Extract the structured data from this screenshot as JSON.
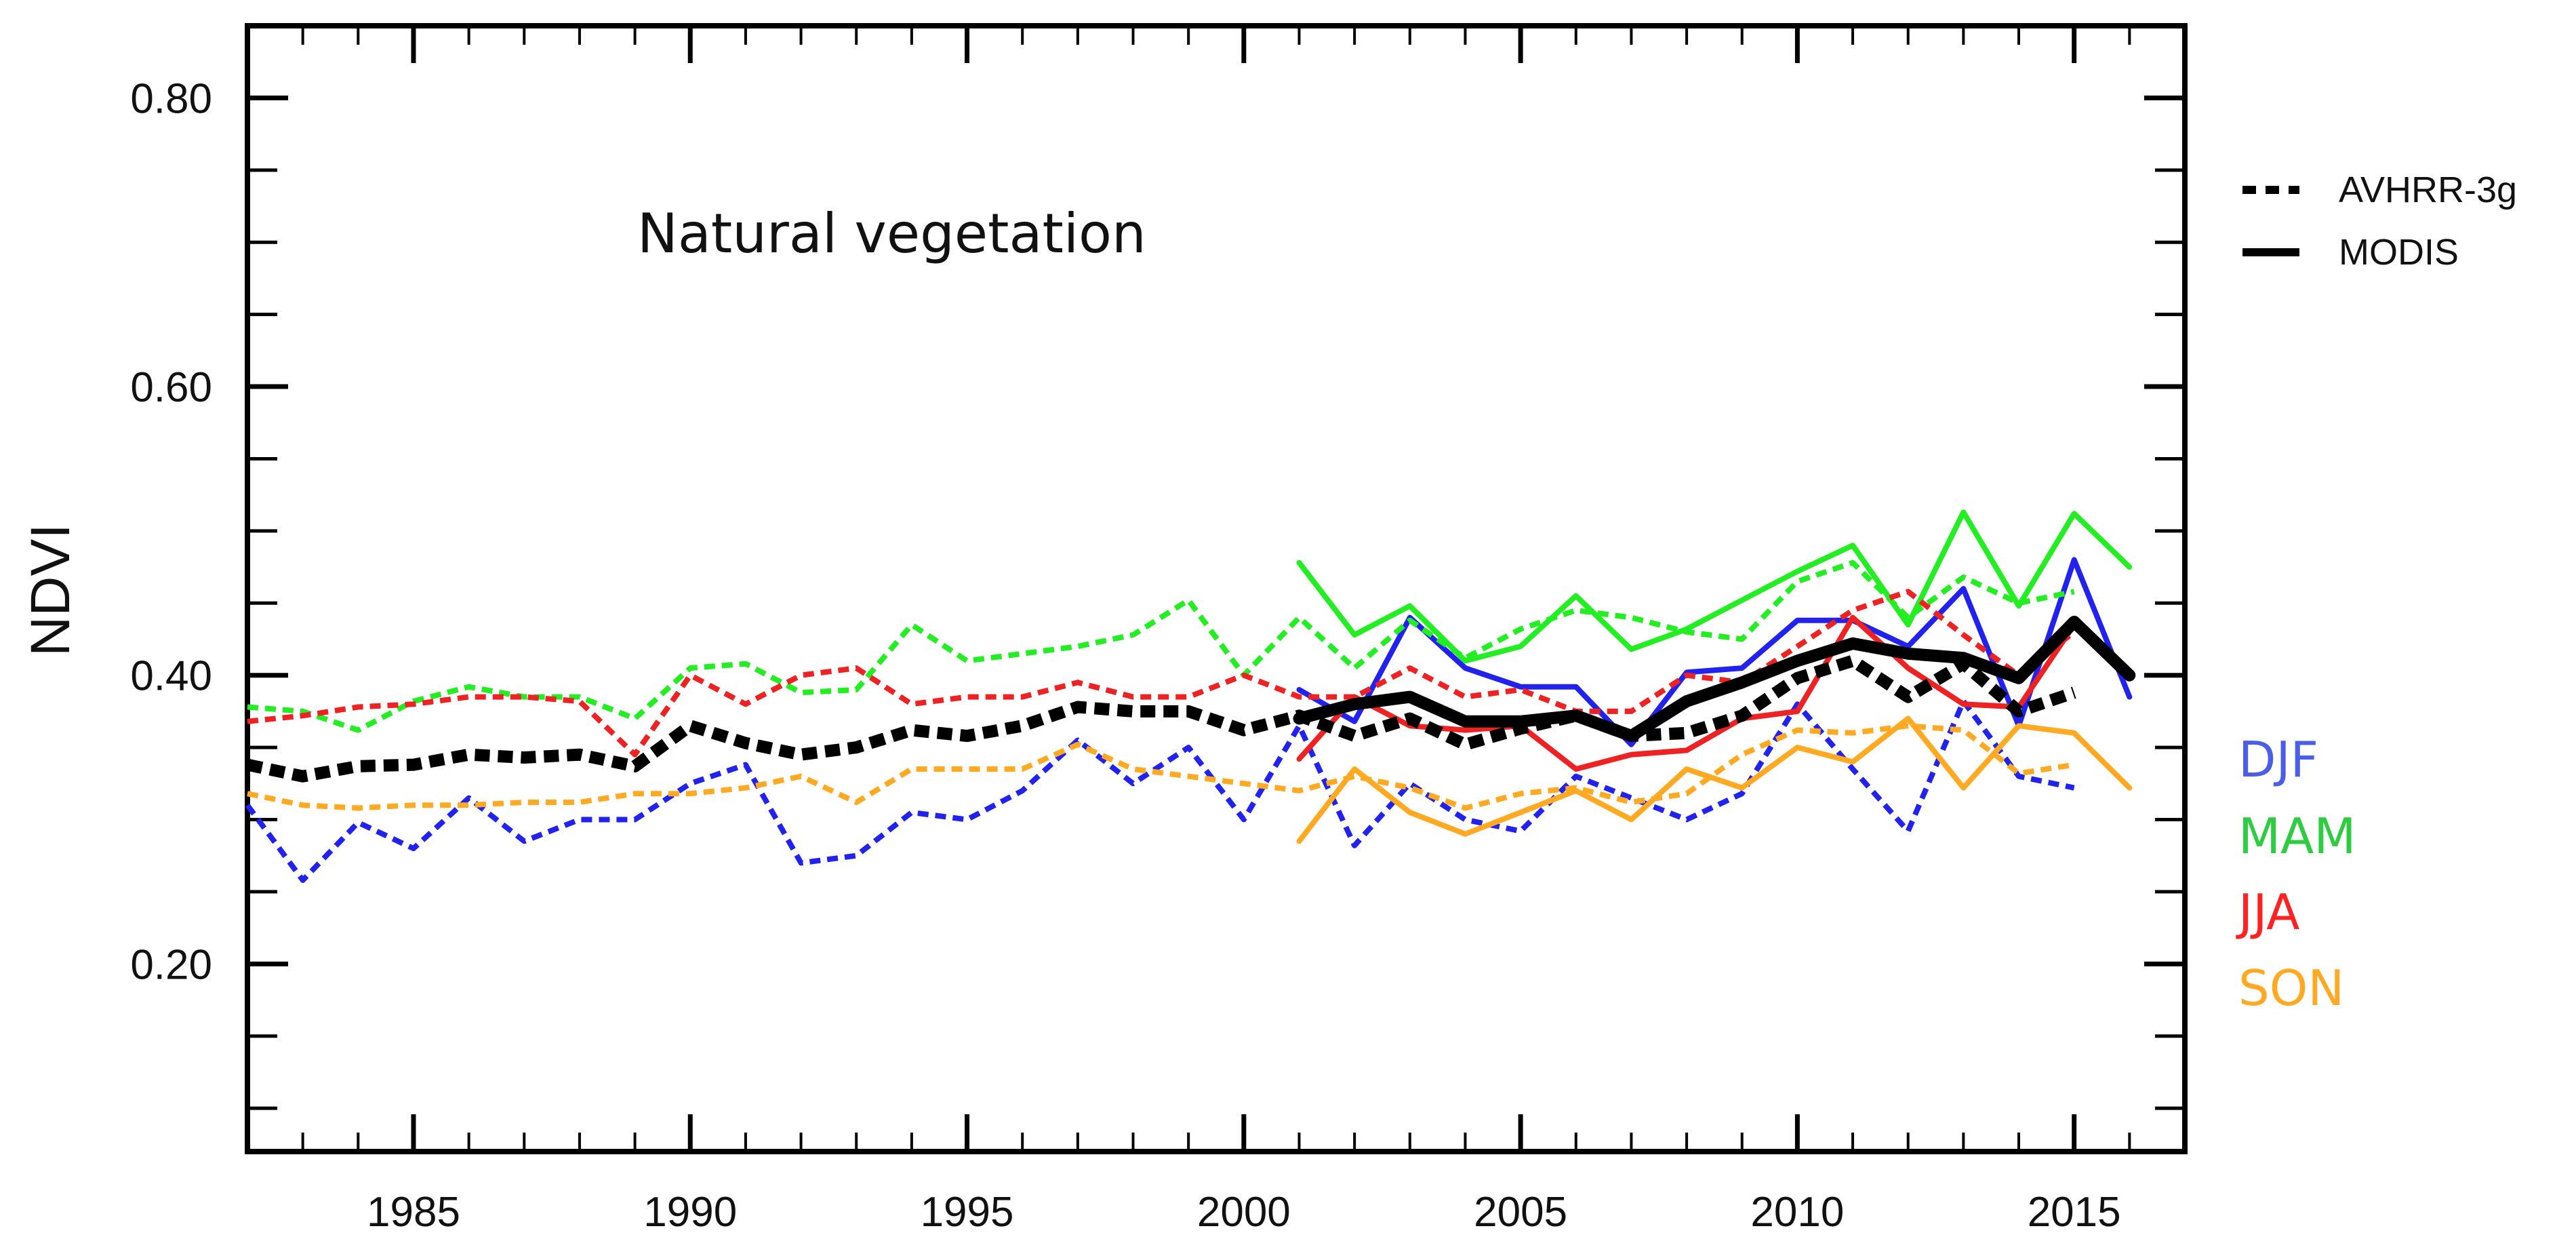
{
  "chart_data": {
    "type": "line",
    "title": "",
    "annotation": "Natural vegetation",
    "ylabel": "NDVI",
    "xlabel": "",
    "xlim": [
      1982,
      2017
    ],
    "ylim": [
      0.07,
      0.85
    ],
    "x_ticks": [
      1985,
      1990,
      1995,
      2000,
      2005,
      2010,
      2015
    ],
    "y_ticks": [
      0.8,
      0.6,
      0.4,
      0.2
    ],
    "y_tick_labels": [
      "0.80",
      "0.60",
      "0.40",
      "0.20"
    ],
    "y_minor_step": 0.05,
    "grid": false,
    "legend": {
      "placement": "top-right, outside plot",
      "styles": [
        {
          "label": "AVHRR-3g",
          "dash": "dashed"
        },
        {
          "label": "MODIS",
          "dash": "solid"
        }
      ],
      "seasons": [
        {
          "label": "DJF",
          "color": "#4a5ee8"
        },
        {
          "label": "MAM",
          "color": "#2ecc40"
        },
        {
          "label": "JJA",
          "color": "#ff2222"
        },
        {
          "label": "SON",
          "color": "#ffaa22"
        }
      ]
    },
    "series": [
      {
        "name": "Annual AVHRR-3g",
        "style": "dashed",
        "color": "#000000",
        "weight": "bold",
        "x": [
          1982,
          1983,
          1984,
          1985,
          1986,
          1987,
          1988,
          1989,
          1990,
          1991,
          1992,
          1993,
          1994,
          1995,
          1996,
          1997,
          1998,
          1999,
          2000,
          2001,
          2002,
          2003,
          2004,
          2005,
          2006,
          2007,
          2008,
          2009,
          2010,
          2011,
          2012,
          2013,
          2014,
          2015
        ],
        "y": [
          0.338,
          0.33,
          0.337,
          0.338,
          0.345,
          0.343,
          0.345,
          0.337,
          0.365,
          0.353,
          0.345,
          0.35,
          0.362,
          0.358,
          0.365,
          0.378,
          0.375,
          0.375,
          0.362,
          0.372,
          0.358,
          0.37,
          0.352,
          0.363,
          0.372,
          0.358,
          0.36,
          0.372,
          0.398,
          0.41,
          0.385,
          0.408,
          0.375,
          0.388
        ]
      },
      {
        "name": "Annual MODIS",
        "style": "solid",
        "color": "#000000",
        "weight": "bold",
        "x": [
          2001,
          2002,
          2003,
          2004,
          2005,
          2006,
          2007,
          2008,
          2009,
          2010,
          2011,
          2012,
          2013,
          2014,
          2015,
          2016
        ],
        "y": [
          0.37,
          0.38,
          0.385,
          0.368,
          0.368,
          0.372,
          0.358,
          0.382,
          0.395,
          0.41,
          0.422,
          0.415,
          0.412,
          0.398,
          0.437,
          0.4
        ]
      },
      {
        "name": "DJF AVHRR-3g",
        "style": "dashed",
        "color": "#2222ee",
        "x": [
          1982,
          1983,
          1984,
          1985,
          1986,
          1987,
          1988,
          1989,
          1990,
          1991,
          1992,
          1993,
          1994,
          1995,
          1996,
          1997,
          1998,
          1999,
          2000,
          2001,
          2002,
          2003,
          2004,
          2005,
          2006,
          2007,
          2008,
          2009,
          2010,
          2011,
          2012,
          2013,
          2014,
          2015
        ],
        "y": [
          0.31,
          0.258,
          0.298,
          0.28,
          0.315,
          0.285,
          0.3,
          0.3,
          0.325,
          0.338,
          0.27,
          0.275,
          0.305,
          0.3,
          0.32,
          0.355,
          0.325,
          0.35,
          0.3,
          0.365,
          0.282,
          0.325,
          0.3,
          0.292,
          0.33,
          0.315,
          0.3,
          0.318,
          0.38,
          0.335,
          0.292,
          0.382,
          0.33,
          0.322
        ]
      },
      {
        "name": "DJF MODIS",
        "style": "solid",
        "color": "#2222ee",
        "x": [
          2001,
          2002,
          2003,
          2004,
          2005,
          2006,
          2007,
          2008,
          2009,
          2010,
          2011,
          2012,
          2013,
          2014,
          2015,
          2016
        ],
        "y": [
          0.39,
          0.368,
          0.44,
          0.405,
          0.392,
          0.392,
          0.352,
          0.402,
          0.405,
          0.438,
          0.438,
          0.42,
          0.46,
          0.365,
          0.48,
          0.385
        ]
      },
      {
        "name": "MAM AVHRR-3g",
        "style": "dashed",
        "color": "#22ee22",
        "x": [
          1982,
          1983,
          1984,
          1985,
          1986,
          1987,
          1988,
          1989,
          1990,
          1991,
          1992,
          1993,
          1994,
          1995,
          1996,
          1997,
          1998,
          1999,
          2000,
          2001,
          2002,
          2003,
          2004,
          2005,
          2006,
          2007,
          2008,
          2009,
          2010,
          2011,
          2012,
          2013,
          2014,
          2015
        ],
        "y": [
          0.378,
          0.375,
          0.362,
          0.382,
          0.392,
          0.385,
          0.385,
          0.37,
          0.405,
          0.408,
          0.388,
          0.39,
          0.435,
          0.41,
          0.415,
          0.42,
          0.428,
          0.452,
          0.4,
          0.44,
          0.405,
          0.438,
          0.412,
          0.432,
          0.445,
          0.44,
          0.43,
          0.425,
          0.465,
          0.478,
          0.44,
          0.468,
          0.45,
          0.458
        ]
      },
      {
        "name": "MAM MODIS",
        "style": "solid",
        "color": "#22ee22",
        "x": [
          2001,
          2002,
          2003,
          2004,
          2005,
          2006,
          2007,
          2008,
          2009,
          2010,
          2011,
          2012,
          2013,
          2014,
          2015,
          2016
        ],
        "y": [
          0.478,
          0.428,
          0.448,
          0.41,
          0.42,
          0.455,
          0.418,
          0.432,
          0.452,
          0.472,
          0.49,
          0.435,
          0.513,
          0.448,
          0.512,
          0.475
        ]
      },
      {
        "name": "JJA AVHRR-3g",
        "style": "dashed",
        "color": "#ee2222",
        "x": [
          1982,
          1983,
          1984,
          1985,
          1986,
          1987,
          1988,
          1989,
          1990,
          1991,
          1992,
          1993,
          1994,
          1995,
          1996,
          1997,
          1998,
          1999,
          2000,
          2001,
          2002,
          2003,
          2004,
          2005,
          2006,
          2007,
          2008,
          2009,
          2010,
          2011,
          2012,
          2013,
          2014,
          2015
        ],
        "y": [
          0.368,
          0.372,
          0.378,
          0.38,
          0.385,
          0.385,
          0.382,
          0.345,
          0.4,
          0.38,
          0.4,
          0.405,
          0.38,
          0.385,
          0.385,
          0.395,
          0.385,
          0.385,
          0.4,
          0.385,
          0.385,
          0.405,
          0.385,
          0.39,
          0.375,
          0.375,
          0.4,
          0.395,
          0.42,
          0.445,
          0.458,
          0.428,
          0.4,
          0.43
        ]
      },
      {
        "name": "JJA MODIS",
        "style": "solid",
        "color": "#ee2222",
        "x": [
          2001,
          2002,
          2003,
          2004,
          2005,
          2006,
          2007,
          2008,
          2009,
          2010,
          2011,
          2012,
          2013,
          2014,
          2015,
          2016
        ],
        "y": [
          0.342,
          0.385,
          0.365,
          0.362,
          0.365,
          0.335,
          0.345,
          0.348,
          0.37,
          0.375,
          0.44,
          0.405,
          0.38,
          0.378,
          0.435,
          0.398
        ]
      },
      {
        "name": "SON AVHRR-3g",
        "style": "dashed",
        "color": "#ffaa22",
        "x": [
          1982,
          1983,
          1984,
          1985,
          1986,
          1987,
          1988,
          1989,
          1990,
          1991,
          1992,
          1993,
          1994,
          1995,
          1996,
          1997,
          1998,
          1999,
          2000,
          2001,
          2002,
          2003,
          2004,
          2005,
          2006,
          2007,
          2008,
          2009,
          2010,
          2011,
          2012,
          2013,
          2014,
          2015
        ],
        "y": [
          0.318,
          0.31,
          0.308,
          0.31,
          0.31,
          0.312,
          0.312,
          0.318,
          0.318,
          0.322,
          0.33,
          0.312,
          0.335,
          0.335,
          0.335,
          0.352,
          0.335,
          0.33,
          0.325,
          0.32,
          0.33,
          0.322,
          0.308,
          0.318,
          0.322,
          0.312,
          0.318,
          0.345,
          0.362,
          0.36,
          0.365,
          0.362,
          0.332,
          0.338
        ]
      },
      {
        "name": "SON MODIS",
        "style": "solid",
        "color": "#ffaa22",
        "x": [
          2001,
          2002,
          2003,
          2004,
          2005,
          2006,
          2007,
          2008,
          2009,
          2010,
          2011,
          2012,
          2013,
          2014,
          2015,
          2016
        ],
        "y": [
          0.285,
          0.335,
          0.305,
          0.29,
          0.305,
          0.32,
          0.3,
          0.335,
          0.322,
          0.35,
          0.34,
          0.37,
          0.322,
          0.365,
          0.36,
          0.322
        ]
      }
    ]
  }
}
